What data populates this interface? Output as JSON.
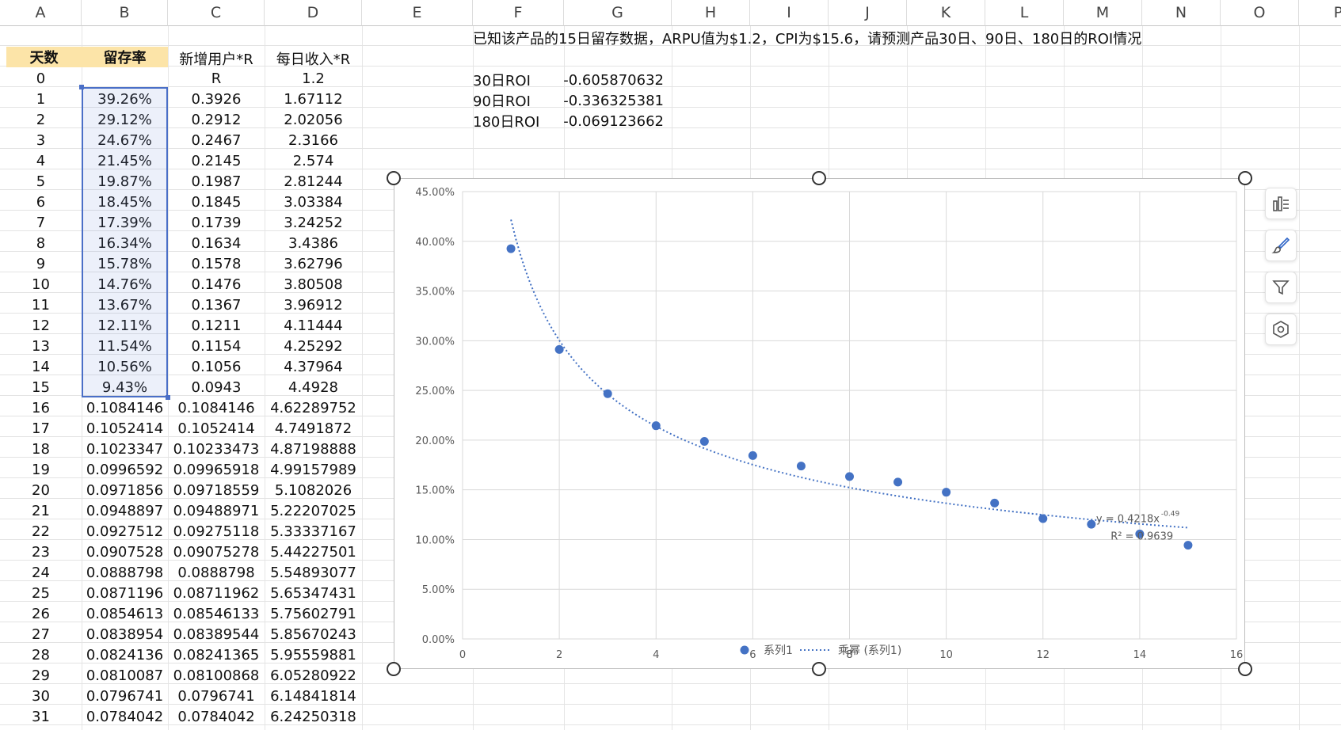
{
  "columns": [
    "A",
    "B",
    "C",
    "D",
    "E",
    "F",
    "G",
    "H",
    "I",
    "J",
    "K",
    "L",
    "M",
    "N",
    "O",
    "P"
  ],
  "header_row": {
    "day": "天数",
    "retention": "留存率",
    "new_users": "新增用户*R",
    "daily_revenue": "每日收入*R"
  },
  "rows": [
    [
      "0",
      "",
      "R",
      "1.2"
    ],
    [
      "1",
      "39.26%",
      "0.3926",
      "1.67112"
    ],
    [
      "2",
      "29.12%",
      "0.2912",
      "2.02056"
    ],
    [
      "3",
      "24.67%",
      "0.2467",
      "2.3166"
    ],
    [
      "4",
      "21.45%",
      "0.2145",
      "2.574"
    ],
    [
      "5",
      "19.87%",
      "0.1987",
      "2.81244"
    ],
    [
      "6",
      "18.45%",
      "0.1845",
      "3.03384"
    ],
    [
      "7",
      "17.39%",
      "0.1739",
      "3.24252"
    ],
    [
      "8",
      "16.34%",
      "0.1634",
      "3.4386"
    ],
    [
      "9",
      "15.78%",
      "0.1578",
      "3.62796"
    ],
    [
      "10",
      "14.76%",
      "0.1476",
      "3.80508"
    ],
    [
      "11",
      "13.67%",
      "0.1367",
      "3.96912"
    ],
    [
      "12",
      "12.11%",
      "0.1211",
      "4.11444"
    ],
    [
      "13",
      "11.54%",
      "0.1154",
      "4.25292"
    ],
    [
      "14",
      "10.56%",
      "0.1056",
      "4.37964"
    ],
    [
      "15",
      "9.43%",
      "0.0943",
      "4.4928"
    ],
    [
      "16",
      "0.1084146",
      "0.1084146",
      "4.62289752"
    ],
    [
      "17",
      "0.1052414",
      "0.1052414",
      "4.7491872"
    ],
    [
      "18",
      "0.1023347",
      "0.10233473",
      "4.87198888"
    ],
    [
      "19",
      "0.0996592",
      "0.09965918",
      "4.99157989"
    ],
    [
      "20",
      "0.0971856",
      "0.09718559",
      "5.1082026"
    ],
    [
      "21",
      "0.0948897",
      "0.09488971",
      "5.22207025"
    ],
    [
      "22",
      "0.0927512",
      "0.09275118",
      "5.33337167"
    ],
    [
      "23",
      "0.0907528",
      "0.09075278",
      "5.44227501"
    ],
    [
      "24",
      "0.0888798",
      "0.0888798",
      "5.54893077"
    ],
    [
      "25",
      "0.0871196",
      "0.08711962",
      "5.65347431"
    ],
    [
      "26",
      "0.0854613",
      "0.08546133",
      "5.75602791"
    ],
    [
      "27",
      "0.0838954",
      "0.08389544",
      "5.85670243"
    ],
    [
      "28",
      "0.0824136",
      "0.08241365",
      "5.95559881"
    ],
    [
      "29",
      "0.0810087",
      "0.08100868",
      "6.05280922"
    ],
    [
      "30",
      "0.0796741",
      "0.0796741",
      "6.14841814"
    ],
    [
      "31",
      "0.0784042",
      "0.0784042",
      "6.24250318"
    ]
  ],
  "question": "已知该产品的15日留存数据，ARPU值为$1.2，CPI为$15.6，请预测产品30日、90日、180日的ROI情况",
  "roi": [
    {
      "label": "30日ROI",
      "value": "-0.605870632"
    },
    {
      "label": "90日ROI",
      "value": "-0.336325381"
    },
    {
      "label": "180日ROI",
      "value": "-0.069123662"
    }
  ],
  "side_buttons": [
    {
      "name": "chart-elements-icon"
    },
    {
      "name": "chart-styles-icon"
    },
    {
      "name": "chart-filter-icon"
    },
    {
      "name": "chart-settings-icon"
    }
  ],
  "chart_data": {
    "type": "scatter",
    "x": [
      1,
      2,
      3,
      4,
      5,
      6,
      7,
      8,
      9,
      10,
      11,
      12,
      13,
      14,
      15
    ],
    "series": [
      {
        "name": "系列1",
        "values": [
          0.3926,
          0.2912,
          0.2467,
          0.2145,
          0.1987,
          0.1845,
          0.1739,
          0.1634,
          0.1578,
          0.1476,
          0.1367,
          0.1211,
          0.1154,
          0.1056,
          0.0943
        ]
      }
    ],
    "trendline": {
      "name": "乘幂 (系列1)",
      "type": "power",
      "a": 0.4218,
      "b": -0.49,
      "equation": "y = 0.4218x",
      "exponent": "-0.49",
      "r2_label": "R² = 0.9639"
    },
    "xlim": [
      0,
      16
    ],
    "xticks": [
      "0",
      "2",
      "4",
      "6",
      "8",
      "10",
      "12",
      "14",
      "16"
    ],
    "ylim": [
      0,
      0.45
    ],
    "yticks": [
      "0.00%",
      "5.00%",
      "10.00%",
      "15.00%",
      "20.00%",
      "25.00%",
      "30.00%",
      "35.00%",
      "40.00%",
      "45.00%"
    ],
    "grid": true,
    "legend": "bottom",
    "colors": {
      "points": "#4472c4",
      "trend": "#4472c4"
    }
  }
}
